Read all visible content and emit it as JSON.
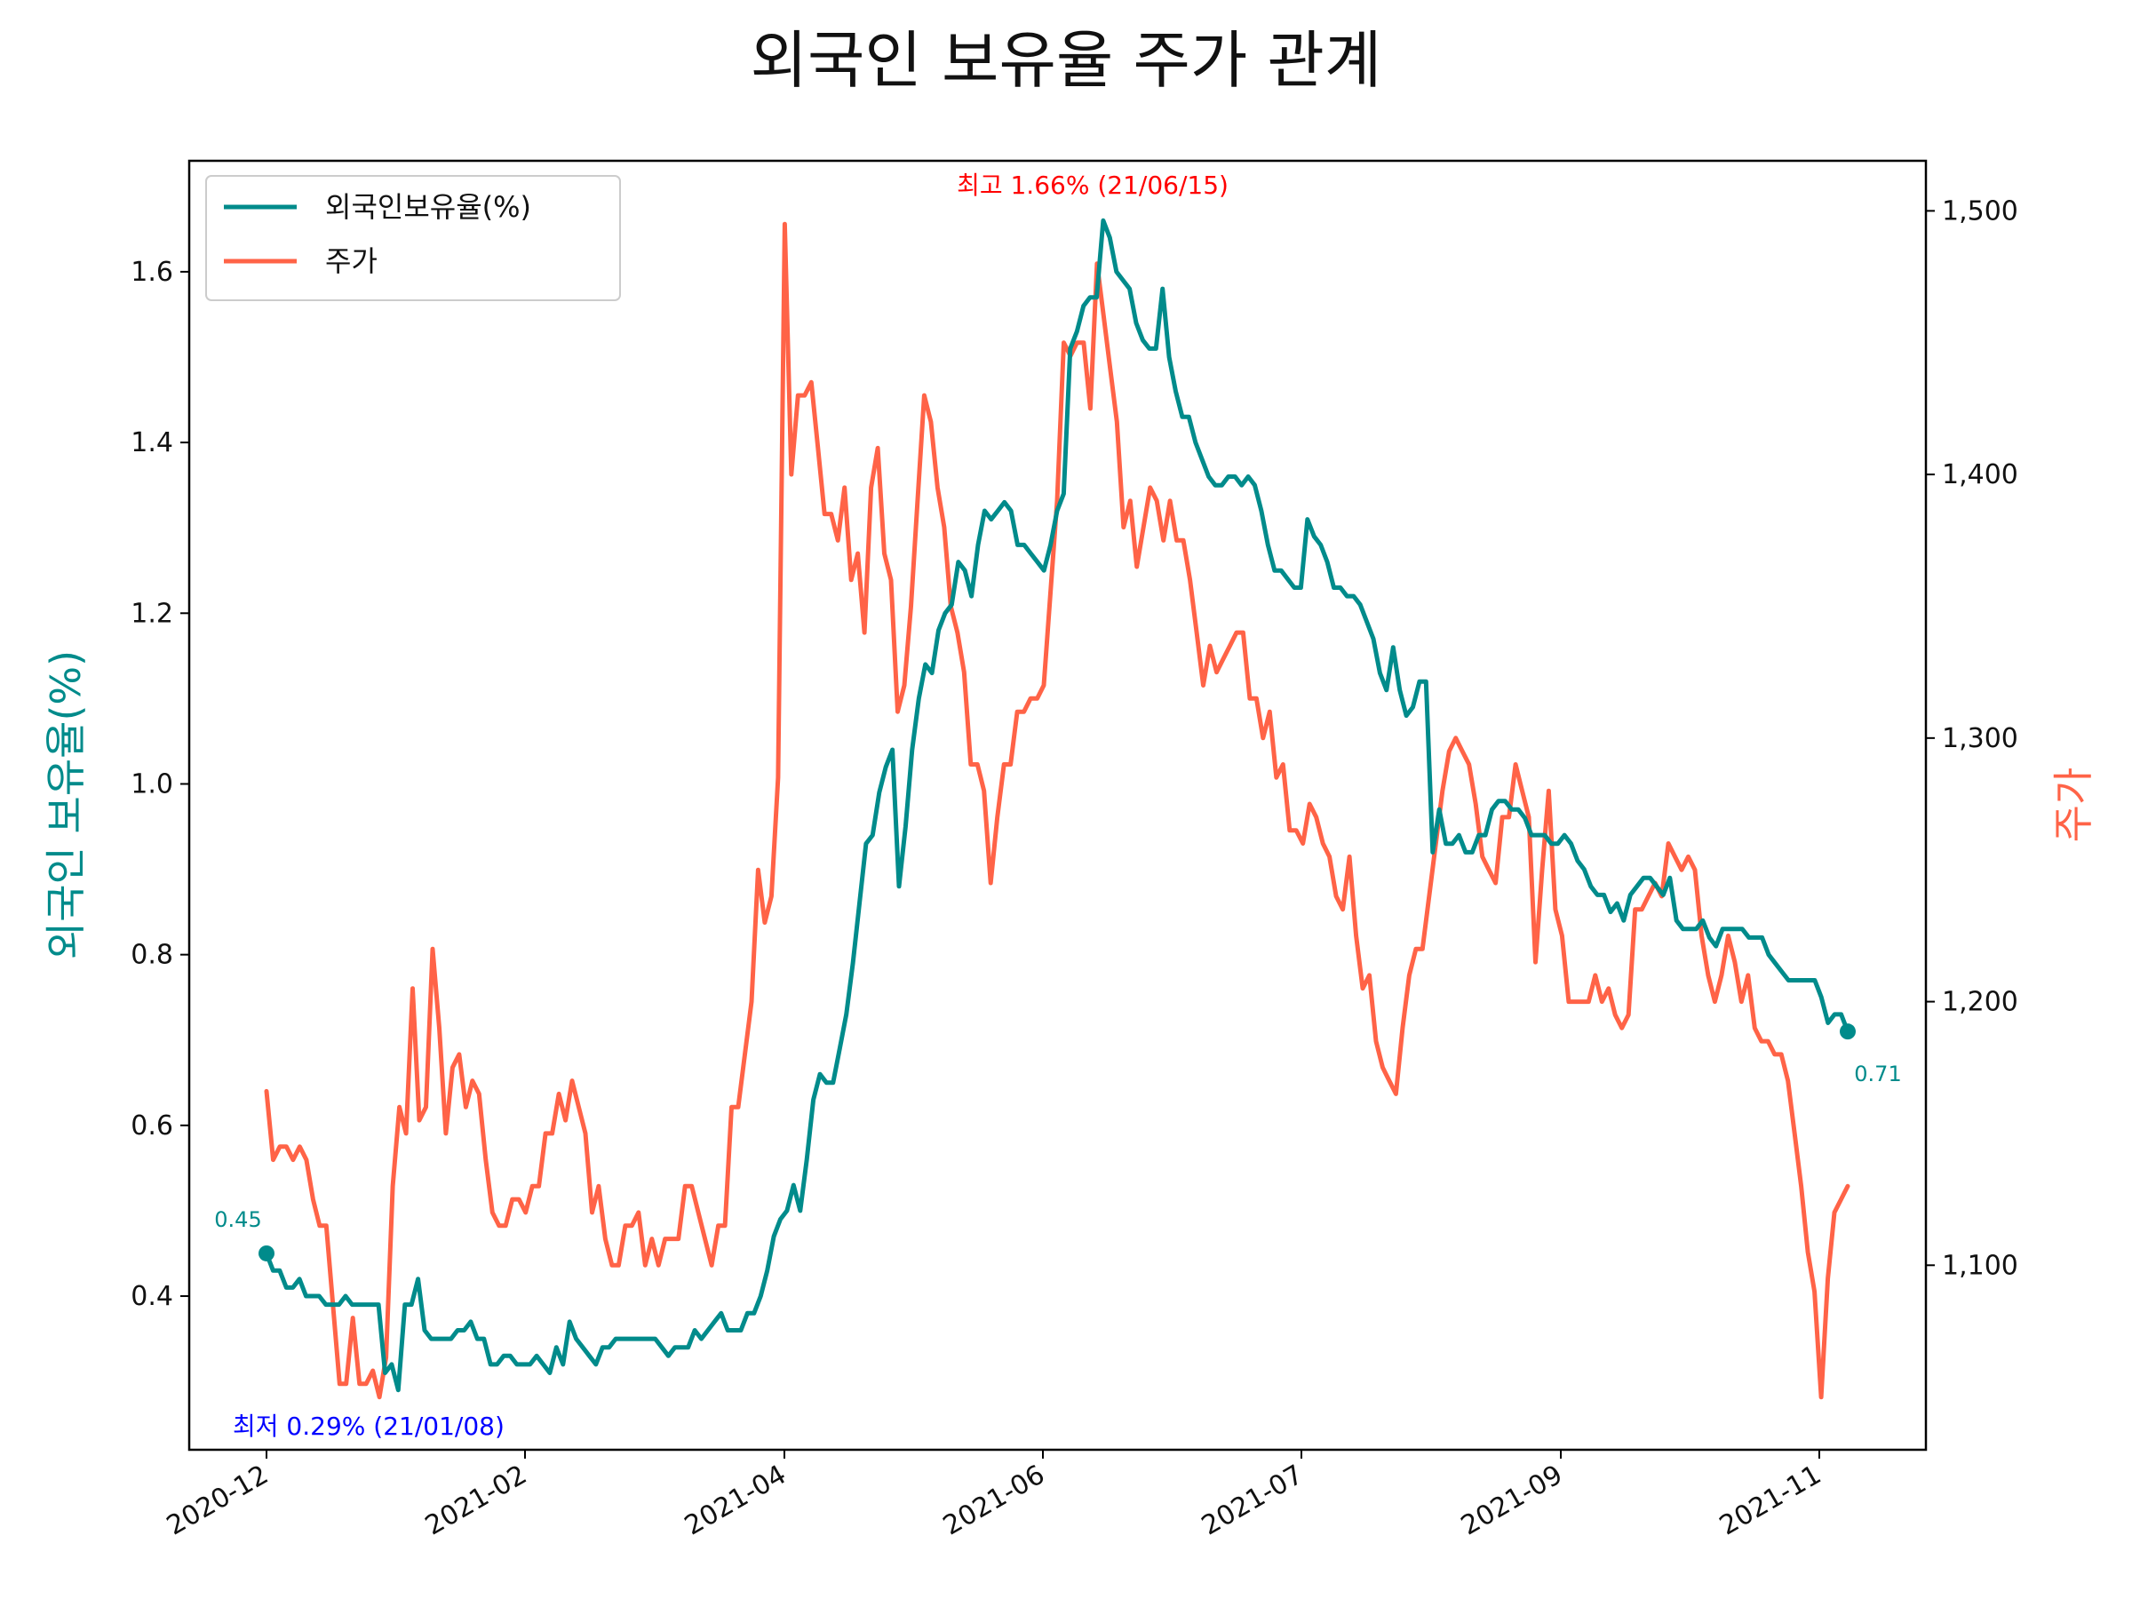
{
  "chart_data": {
    "type": "line",
    "title": "외국인 보유율 주가 관계",
    "ylabel_left": "외국인 보유율(%)",
    "ylabel_right": "주가",
    "x_ticks": [
      "2020-12",
      "2021-02",
      "2021-04",
      "2021-06",
      "2021-07",
      "2021-09",
      "2021-11"
    ],
    "y_left_ticks": [
      "0.4",
      "0.6",
      "0.8",
      "1.0",
      "1.2",
      "1.4",
      "1.6"
    ],
    "y_right_ticks": [
      "1,100",
      "1,200",
      "1,300",
      "1,400",
      "1,500"
    ],
    "y_left_range": [
      0.22,
      1.73
    ],
    "y_right_range": [
      1030,
      1519
    ],
    "legend_position": "upper left",
    "series": [
      {
        "name": "외국인보유율(%)",
        "axis": "left",
        "color": "#008b8b",
        "values": [
          0.45,
          0.43,
          0.43,
          0.41,
          0.41,
          0.42,
          0.4,
          0.4,
          0.4,
          0.39,
          0.39,
          0.39,
          0.4,
          0.39,
          0.39,
          0.39,
          0.39,
          0.39,
          0.31,
          0.32,
          0.29,
          0.39,
          0.39,
          0.42,
          0.36,
          0.35,
          0.35,
          0.35,
          0.35,
          0.36,
          0.36,
          0.37,
          0.35,
          0.35,
          0.32,
          0.32,
          0.33,
          0.33,
          0.32,
          0.32,
          0.32,
          0.33,
          0.32,
          0.31,
          0.34,
          0.32,
          0.37,
          0.35,
          0.34,
          0.33,
          0.32,
          0.34,
          0.34,
          0.35,
          0.35,
          0.35,
          0.35,
          0.35,
          0.35,
          0.35,
          0.34,
          0.33,
          0.34,
          0.34,
          0.34,
          0.36,
          0.35,
          0.36,
          0.37,
          0.38,
          0.36,
          0.36,
          0.36,
          0.38,
          0.38,
          0.4,
          0.43,
          0.47,
          0.49,
          0.5,
          0.53,
          0.5,
          0.56,
          0.63,
          0.66,
          0.65,
          0.65,
          0.69,
          0.73,
          0.79,
          0.86,
          0.93,
          0.94,
          0.99,
          1.02,
          1.04,
          0.88,
          0.95,
          1.04,
          1.1,
          1.14,
          1.13,
          1.18,
          1.2,
          1.21,
          1.26,
          1.25,
          1.22,
          1.28,
          1.32,
          1.31,
          1.32,
          1.33,
          1.32,
          1.28,
          1.28,
          1.27,
          1.26,
          1.25,
          1.28,
          1.32,
          1.34,
          1.51,
          1.53,
          1.56,
          1.57,
          1.57,
          1.66,
          1.64,
          1.6,
          1.59,
          1.58,
          1.54,
          1.52,
          1.51,
          1.51,
          1.58,
          1.5,
          1.46,
          1.43,
          1.43,
          1.4,
          1.38,
          1.36,
          1.35,
          1.35,
          1.36,
          1.36,
          1.35,
          1.36,
          1.35,
          1.32,
          1.28,
          1.25,
          1.25,
          1.24,
          1.23,
          1.23,
          1.31,
          1.29,
          1.28,
          1.26,
          1.23,
          1.23,
          1.22,
          1.22,
          1.21,
          1.19,
          1.17,
          1.13,
          1.11,
          1.16,
          1.11,
          1.08,
          1.09,
          1.12,
          1.12,
          0.92,
          0.97,
          0.93,
          0.93,
          0.94,
          0.92,
          0.92,
          0.94,
          0.94,
          0.97,
          0.98,
          0.98,
          0.97,
          0.97,
          0.96,
          0.94,
          0.94,
          0.94,
          0.93,
          0.93,
          0.94,
          0.93,
          0.91,
          0.9,
          0.88,
          0.87,
          0.87,
          0.85,
          0.86,
          0.84,
          0.87,
          0.88,
          0.89,
          0.89,
          0.88,
          0.87,
          0.89,
          0.84,
          0.83,
          0.83,
          0.83,
          0.84,
          0.82,
          0.81,
          0.83,
          0.83,
          0.83,
          0.83,
          0.82,
          0.82,
          0.82,
          0.8,
          0.79,
          0.78,
          0.77,
          0.77,
          0.77,
          0.77,
          0.77,
          0.75,
          0.72,
          0.73,
          0.73,
          0.71
        ]
      },
      {
        "name": "주가",
        "axis": "right",
        "color": "#ff6347",
        "values": [
          1166,
          1140,
          1145,
          1145,
          1140,
          1145,
          1140,
          1125,
          1115,
          1115,
          1085,
          1055,
          1055,
          1080,
          1055,
          1055,
          1060,
          1050,
          1065,
          1130,
          1160,
          1150,
          1205,
          1155,
          1160,
          1220,
          1190,
          1150,
          1175,
          1180,
          1160,
          1170,
          1165,
          1140,
          1120,
          1115,
          1115,
          1125,
          1125,
          1120,
          1130,
          1130,
          1150,
          1150,
          1165,
          1155,
          1170,
          1160,
          1150,
          1120,
          1130,
          1110,
          1100,
          1100,
          1115,
          1115,
          1120,
          1100,
          1110,
          1100,
          1110,
          1110,
          1110,
          1130,
          1130,
          1120,
          1110,
          1100,
          1115,
          1115,
          1160,
          1160,
          1180,
          1200,
          1250,
          1230,
          1240,
          1285,
          1495,
          1400,
          1430,
          1430,
          1435,
          1410,
          1385,
          1385,
          1375,
          1395,
          1360,
          1370,
          1340,
          1395,
          1410,
          1370,
          1360,
          1310,
          1320,
          1350,
          1390,
          1430,
          1420,
          1395,
          1380,
          1350,
          1340,
          1325,
          1290,
          1290,
          1280,
          1245,
          1270,
          1290,
          1290,
          1310,
          1310,
          1315,
          1315,
          1320,
          1355,
          1390,
          1450,
          1445,
          1450,
          1450,
          1425,
          1480,
          1460,
          1440,
          1420,
          1380,
          1390,
          1365,
          1380,
          1395,
          1390,
          1375,
          1390,
          1375,
          1375,
          1360,
          1340,
          1320,
          1335,
          1325,
          1330,
          1335,
          1340,
          1340,
          1315,
          1315,
          1300,
          1310,
          1285,
          1290,
          1265,
          1265,
          1260,
          1275,
          1270,
          1260,
          1255,
          1240,
          1235,
          1255,
          1225,
          1205,
          1210,
          1185,
          1175,
          1170,
          1165,
          1190,
          1210,
          1220,
          1220,
          1240,
          1260,
          1280,
          1295,
          1300,
          1295,
          1290,
          1275,
          1255,
          1250,
          1245,
          1270,
          1270,
          1290,
          1280,
          1270,
          1215,
          1250,
          1280,
          1235,
          1225,
          1200,
          1200,
          1200,
          1200,
          1210,
          1200,
          1205,
          1195,
          1190,
          1195,
          1235,
          1235,
          1240,
          1245,
          1240,
          1260,
          1255,
          1250,
          1255,
          1250,
          1225,
          1210,
          1200,
          1210,
          1225,
          1215,
          1200,
          1210,
          1190,
          1185,
          1185,
          1180,
          1180,
          1170,
          1150,
          1130,
          1105,
          1090,
          1050,
          1095,
          1120,
          1125,
          1130
        ]
      }
    ],
    "annotations": {
      "max": "최고 1.66% (21/06/15)",
      "min": "최저 0.29% (21/01/08)",
      "start": "0.45",
      "end": "0.71"
    }
  }
}
